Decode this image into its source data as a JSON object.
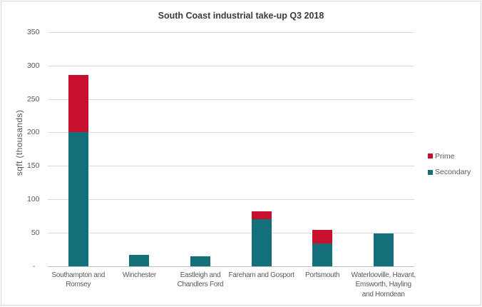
{
  "chart_data": {
    "type": "bar",
    "stacked": true,
    "title": "South Coast industrial take-up Q3 2018",
    "ylabel": "sqft (thousands)",
    "xlabel": "",
    "ylim": [
      0,
      350
    ],
    "ytick_interval": 50,
    "ytick_labels": [
      "-",
      "50",
      "100",
      "150",
      "200",
      "250",
      "300",
      "350"
    ],
    "grid": true,
    "legend_position": "right",
    "categories": [
      "Southampton and Romsey",
      "Winchester",
      "Eastleigh and Chandlers Ford",
      "Fareham and Gosport",
      "Portsmouth",
      "Waterlooville, Havant, Emsworth, Hayling and Horndean"
    ],
    "category_lines": [
      [
        "Southampton and",
        "Romsey"
      ],
      [
        "Winchester"
      ],
      [
        "Eastleigh and",
        "Chandlers Ford"
      ],
      [
        "Fareham and Gosport"
      ],
      [
        "Portsmouth"
      ],
      [
        "Waterlooville, Havant,",
        "Emsworth, Hayling",
        "and Horndean"
      ]
    ],
    "series": [
      {
        "name": "Secondary",
        "color": "#12707a",
        "values": [
          201,
          17,
          15,
          71,
          34,
          49
        ]
      },
      {
        "name": "Prime",
        "color": "#c8102e",
        "values": [
          85,
          0,
          0,
          11,
          20,
          0
        ]
      }
    ],
    "legend_order": [
      "Prime",
      "Secondary"
    ],
    "colors": {
      "prime": "#c8102e",
      "secondary": "#12707a",
      "gridline": "#d9d9d9",
      "axis_line": "#bfbfbf",
      "frame_border": "#d9d9d9",
      "title_text": "#3b3b3b",
      "axis_text": "#595959",
      "background": "#ffffff"
    }
  }
}
